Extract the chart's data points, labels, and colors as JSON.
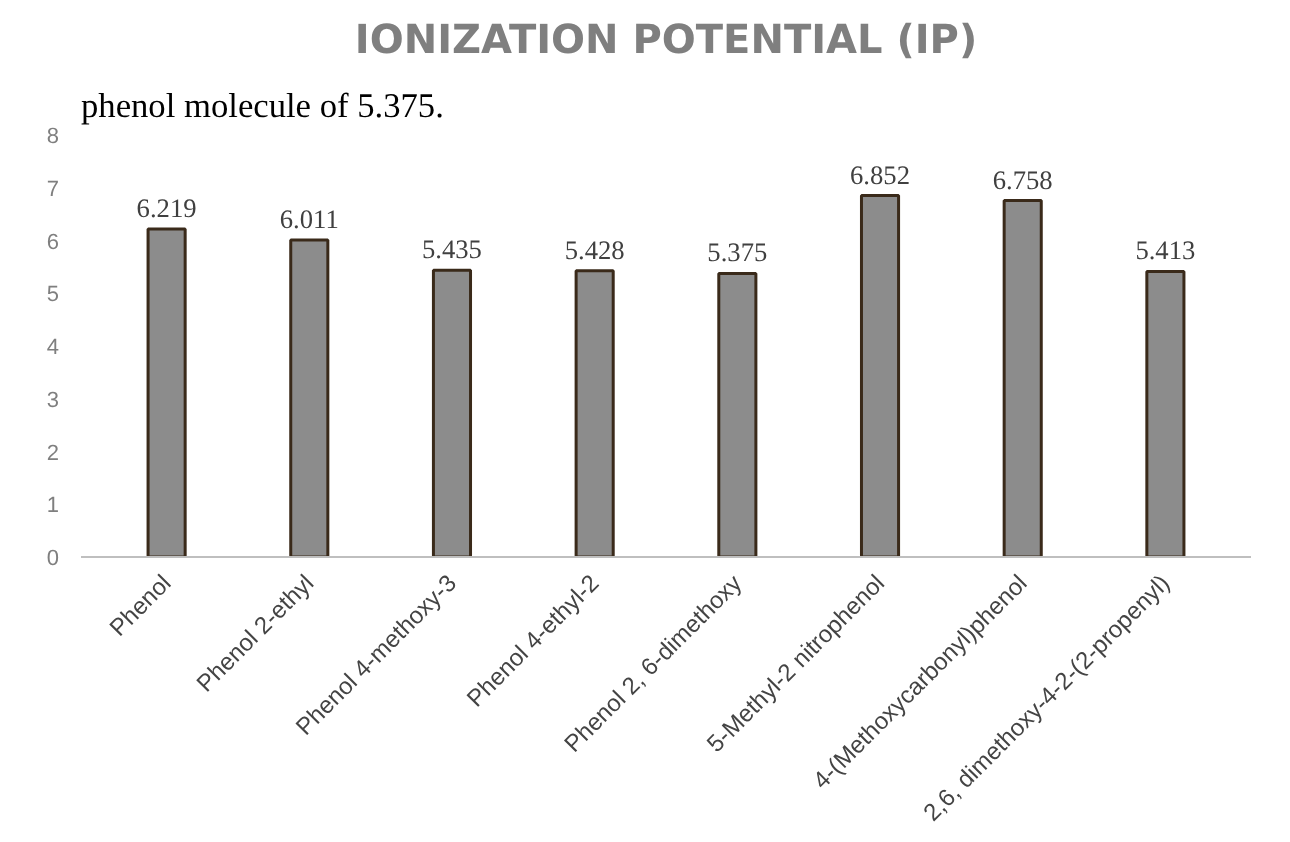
{
  "chart_data": {
    "type": "bar",
    "title": "IONIZATION POTENTIAL (IP)",
    "annotations": [
      "phenol molecule of 5.375."
    ],
    "categories": [
      "Phenol",
      "Phenol 2-ethyl",
      "Phenol 4-methoxy-3",
      "Phenol 4-ethyl-2",
      "Phenol 2, 6-dimethoxy",
      "5-Methyl-2 nitrophenol",
      "4-(Methoxycarbonyl)phenol",
      "2,6, dimethoxy-4-2-(2-propenyl)"
    ],
    "values": [
      6.219,
      6.011,
      5.435,
      5.428,
      5.375,
      6.852,
      6.758,
      5.413
    ],
    "color": "#8c8c8c",
    "ylim": [
      0,
      8
    ],
    "yticks": [
      0,
      1,
      2,
      3,
      4,
      5,
      6,
      7,
      8
    ],
    "grid": false,
    "data_labels": true
  }
}
